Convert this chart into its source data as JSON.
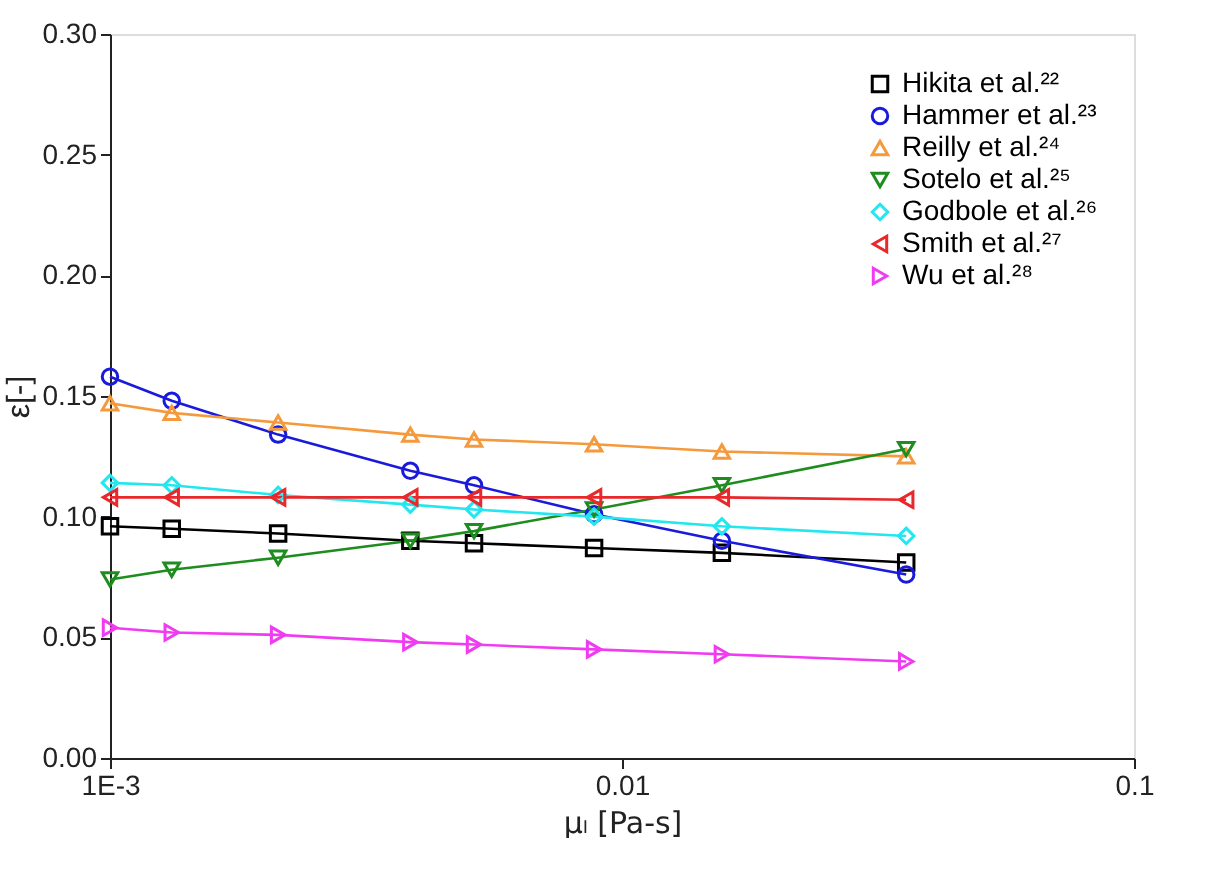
{
  "chart_data": {
    "type": "line",
    "xlabel": "μₗ [Pa-s]",
    "ylabel": "ε[-]",
    "log": "x",
    "xlim": [
      0.001,
      0.1
    ],
    "xticks": [
      {
        "value": 0.001,
        "label": "1E-3"
      },
      0.01,
      0.1
    ],
    "ylim": [
      0,
      0.3
    ],
    "yticks": [
      {
        "value": 0,
        "label": "0.00"
      },
      0.05,
      {
        "value": 0.1,
        "label": "0.10"
      },
      0.15,
      {
        "value": 0.2,
        "label": "0.20"
      },
      0.25,
      {
        "value": 0.3,
        "label": "0.30"
      }
    ],
    "x": [
      0.001,
      0.00132,
      0.00213,
      0.00386,
      0.00514,
      0.00882,
      0.01567,
      0.0359
    ],
    "grid": false,
    "legend": "top right",
    "line_style": "solid",
    "series": [
      {
        "name": "Hikita et al.²²",
        "color": "#000000",
        "marker": "square",
        "values": [
          0.096,
          0.095,
          0.093,
          0.09,
          0.089,
          0.087,
          0.085,
          0.081
        ]
      },
      {
        "name": "Hammer et al.²³",
        "color": "#1a1adc",
        "marker": "circle",
        "values": [
          0.158,
          0.148,
          0.134,
          0.119,
          0.113,
          0.101,
          0.09,
          0.076
        ]
      },
      {
        "name": "Reilly et al.²⁴",
        "color": "#f59a3c",
        "marker": "triangle",
        "values": [
          0.147,
          0.143,
          0.139,
          0.134,
          0.132,
          0.13,
          0.127,
          0.125
        ]
      },
      {
        "name": "Sotelo et al.²⁵",
        "color": "#1e8c1e",
        "marker": "triangle-down",
        "values": [
          0.074,
          0.078,
          0.083,
          0.09,
          0.094,
          0.103,
          0.113,
          0.128
        ]
      },
      {
        "name": "Godbole et al.²⁶",
        "color": "#22e6f0",
        "marker": "diamond",
        "values": [
          0.114,
          0.113,
          0.109,
          0.105,
          0.103,
          0.1,
          0.096,
          0.092
        ]
      },
      {
        "name": "Smith et al.²⁷",
        "color": "#e8282a",
        "marker": "triangle-left",
        "values": [
          0.108,
          0.108,
          0.108,
          0.108,
          0.108,
          0.108,
          0.108,
          0.107
        ]
      },
      {
        "name": "Wu et al.²⁸",
        "color": "#f03cf0",
        "marker": "triangle-right",
        "values": [
          0.054,
          0.052,
          0.051,
          0.048,
          0.047,
          0.045,
          0.043,
          0.04
        ]
      }
    ]
  }
}
